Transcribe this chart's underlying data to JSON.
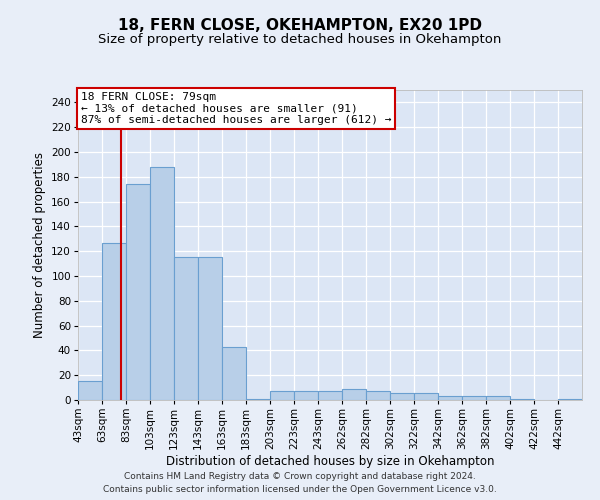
{
  "title1": "18, FERN CLOSE, OKEHAMPTON, EX20 1PD",
  "title2": "Size of property relative to detached houses in Okehampton",
  "xlabel": "Distribution of detached houses by size in Okehampton",
  "ylabel": "Number of detached properties",
  "bin_labels": [
    "43sqm",
    "63sqm",
    "83sqm",
    "103sqm",
    "123sqm",
    "143sqm",
    "163sqm",
    "183sqm",
    "203sqm",
    "223sqm",
    "243sqm",
    "262sqm",
    "282sqm",
    "302sqm",
    "322sqm",
    "342sqm",
    "362sqm",
    "382sqm",
    "402sqm",
    "422sqm",
    "442sqm"
  ],
  "bin_left_edges": [
    43,
    63,
    83,
    103,
    123,
    143,
    163,
    183,
    203,
    223,
    243,
    263,
    283,
    303,
    323,
    343,
    363,
    383,
    403,
    423,
    443
  ],
  "bar_heights": [
    15,
    127,
    174,
    188,
    115,
    115,
    43,
    1,
    7,
    7,
    7,
    9,
    7,
    6,
    6,
    3,
    3,
    3,
    1,
    0,
    1
  ],
  "bar_color": "#b8cfe8",
  "bar_edge_color": "#6a9fd0",
  "bar_linewidth": 0.8,
  "background_color": "#e8eef8",
  "plot_bg_color": "#dce6f5",
  "grid_color": "#ffffff",
  "red_line_x": 79,
  "annotation_title": "18 FERN CLOSE: 79sqm",
  "annotation_line1": "← 13% of detached houses are smaller (91)",
  "annotation_line2": "87% of semi-detached houses are larger (612) →",
  "annotation_box_color": "#ffffff",
  "annotation_border_color": "#cc0000",
  "red_line_color": "#cc0000",
  "footer1": "Contains HM Land Registry data © Crown copyright and database right 2024.",
  "footer2": "Contains public sector information licensed under the Open Government Licence v3.0.",
  "ylim": [
    0,
    250
  ],
  "yticks": [
    0,
    20,
    40,
    60,
    80,
    100,
    120,
    140,
    160,
    180,
    200,
    220,
    240
  ],
  "title1_fontsize": 11,
  "title2_fontsize": 9.5,
  "tick_fontsize": 7.5,
  "ylabel_fontsize": 8.5,
  "xlabel_fontsize": 8.5,
  "footer_fontsize": 6.5,
  "annotation_fontsize": 8
}
